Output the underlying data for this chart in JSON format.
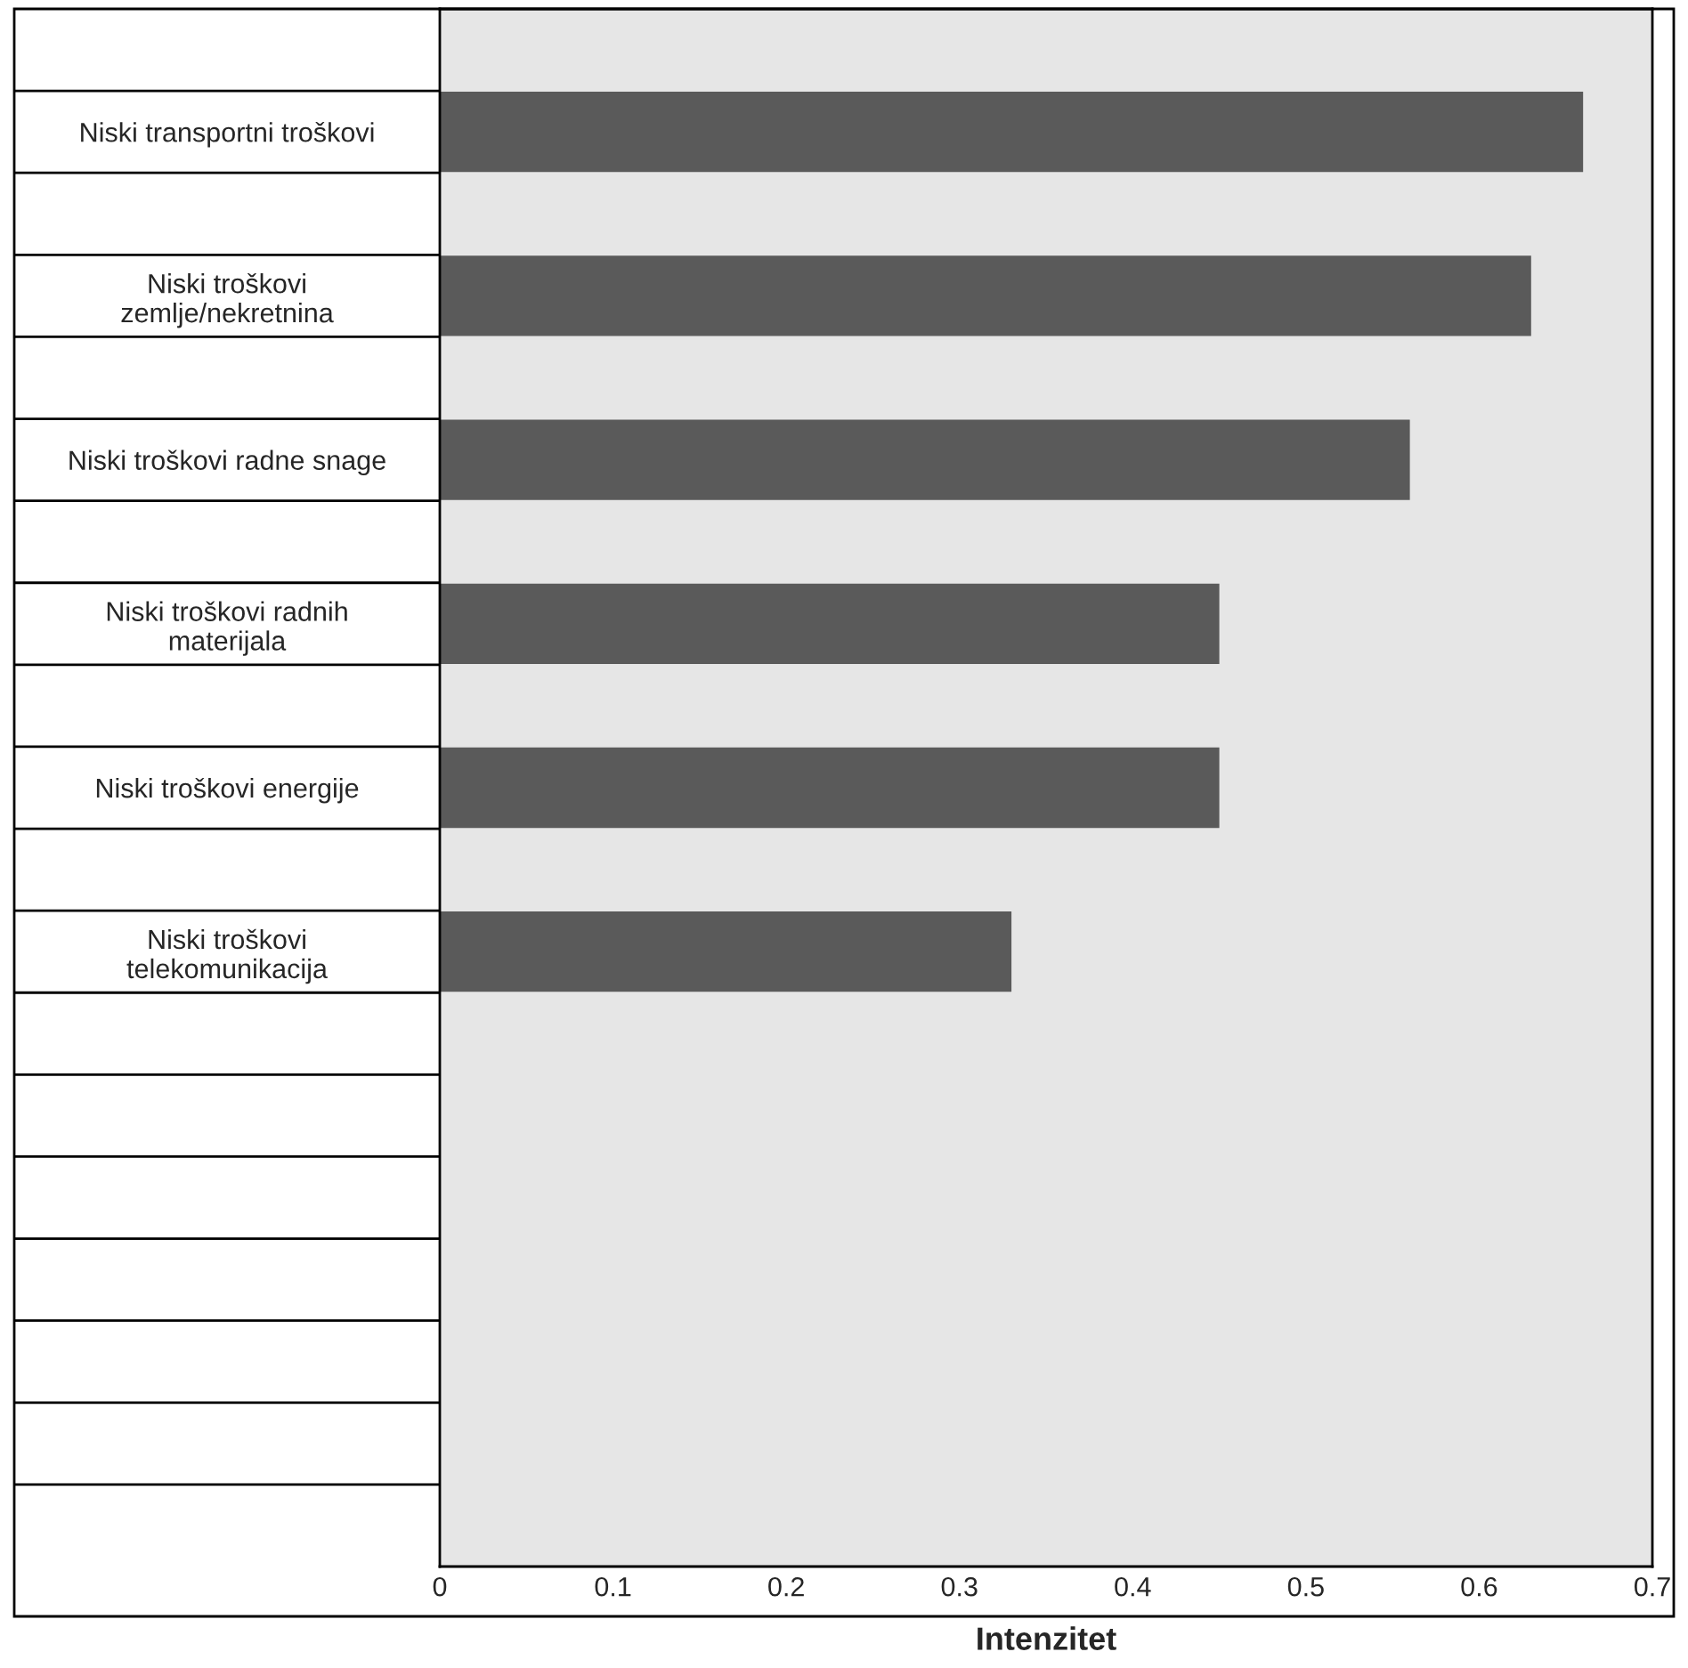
{
  "chart_data": {
    "type": "bar",
    "orientation": "horizontal",
    "xlabel": "Intenzitet",
    "categories": [
      null,
      "Niski transportni troškovi",
      null,
      "Niski troškovi\nzemlje/nekretnina",
      null,
      "Niski troškovi radne snage",
      null,
      "Niski troškovi radnih\nmaterijala",
      null,
      "Niski troškovi energije",
      null,
      "Niski troškovi\ntelekomunikacija",
      null,
      null,
      null,
      null,
      null,
      null,
      null
    ],
    "values": [
      null,
      0.66,
      null,
      0.63,
      null,
      0.56,
      null,
      0.45,
      null,
      0.45,
      null,
      0.33,
      null,
      null,
      null,
      null,
      null,
      null,
      null
    ],
    "color": "#5a5a5a",
    "xlim": [
      0,
      0.7
    ],
    "xticks": [
      0,
      0.1,
      0.2,
      0.3,
      0.4,
      0.5,
      0.6,
      0.7
    ],
    "grid": false,
    "legend": false
  }
}
